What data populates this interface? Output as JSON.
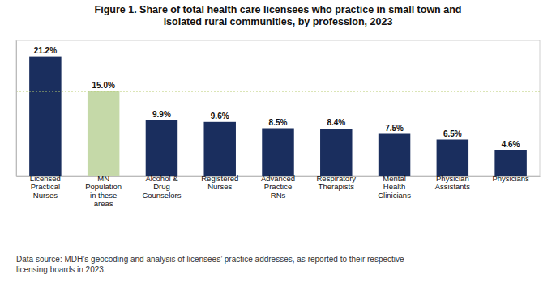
{
  "chart_data": {
    "type": "bar",
    "title": "Figure 1. Share of total health care licensees who practice in small town and\nisolated rural communities, by profession, 2023",
    "categories": [
      "Licensed\nPractical\nNurses",
      "MN\nPopulation\nin these\nareas",
      "Alcohol &\nDrug\nCounselors",
      "Registered\nNurses",
      "Advanced\nPractice\nRNs",
      "Respiratory\nTherapists",
      "Mental\nHealth\nClinicians",
      "Physician\nAssistants",
      "Physicians"
    ],
    "values": [
      21.2,
      15.0,
      9.9,
      9.6,
      8.5,
      8.4,
      7.5,
      6.5,
      4.6
    ],
    "value_labels": [
      "21.2%",
      "15.0%",
      "9.9%",
      "9.6%",
      "8.5%",
      "8.4%",
      "7.5%",
      "6.5%",
      "4.6%"
    ],
    "colors": [
      "#1a2e5e",
      "#c5d9a8",
      "#1a2e5e",
      "#1a2e5e",
      "#1a2e5e",
      "#1a2e5e",
      "#1a2e5e",
      "#1a2e5e",
      "#1a2e5e"
    ],
    "reference_line": {
      "y": 15.0,
      "color": "#b8cc6e"
    },
    "ylim": [
      0,
      24
    ],
    "yticks": [],
    "tick_labels": "x",
    "data_labels": true,
    "grid": false,
    "footnote": "Data source: MDH’s geocoding and analysis of licensees’ practice addresses, as reported to their respective\nlicensing boards in 2023."
  }
}
